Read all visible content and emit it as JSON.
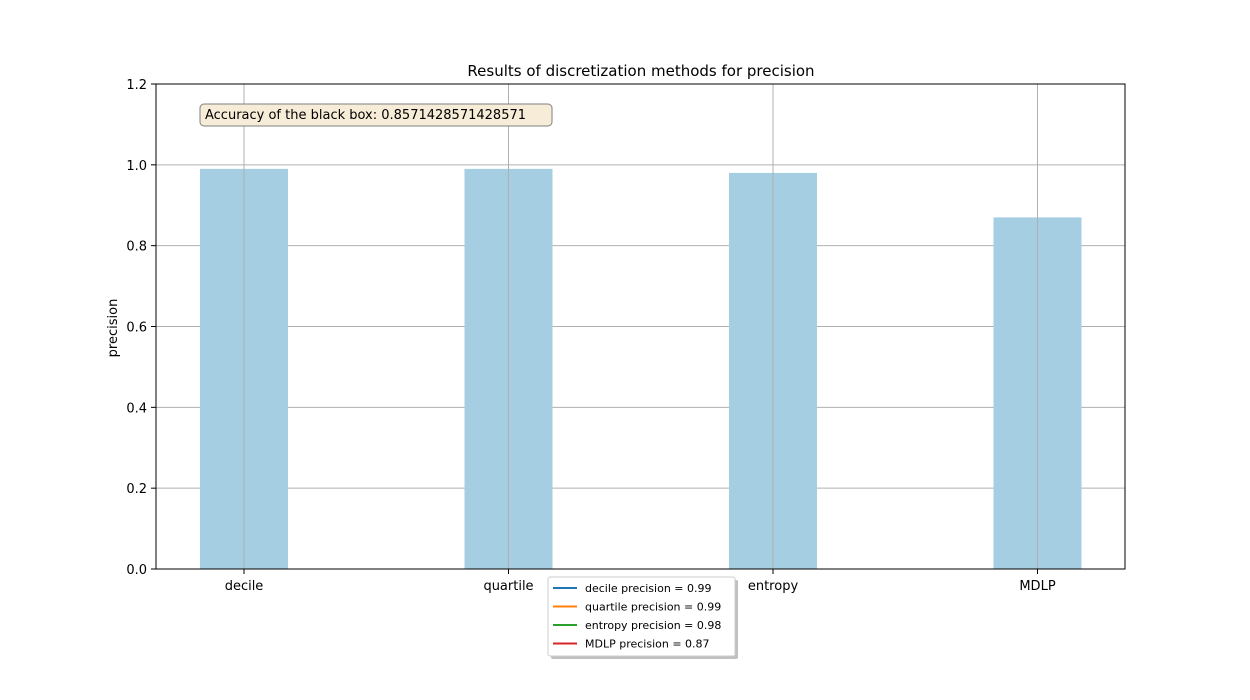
{
  "chart_data": {
    "type": "bar",
    "title": "Results of discretization methods for precision",
    "xlabel": "",
    "ylabel": "precision",
    "categories": [
      "decile",
      "quartile",
      "entropy",
      "MDLP"
    ],
    "values": [
      0.99,
      0.99,
      0.98,
      0.87
    ],
    "ylim": [
      0,
      1.2
    ],
    "yticks": [
      "0.0",
      "0.2",
      "0.4",
      "0.6",
      "0.8",
      "1.0",
      "1.2"
    ],
    "grid": true,
    "bar_color": "#a6cee3",
    "annotation": "Accuracy of the black box: 0.8571428571428571",
    "legend": {
      "placement": "below",
      "entries": [
        {
          "label": "decile precision = 0.99",
          "color": "#1f77b4"
        },
        {
          "label": "quartile precision = 0.99",
          "color": "#ff7f0e"
        },
        {
          "label": "entropy precision = 0.98",
          "color": "#2ca02c"
        },
        {
          "label": "MDLP precision = 0.87",
          "color": "#d62728"
        }
      ]
    }
  }
}
